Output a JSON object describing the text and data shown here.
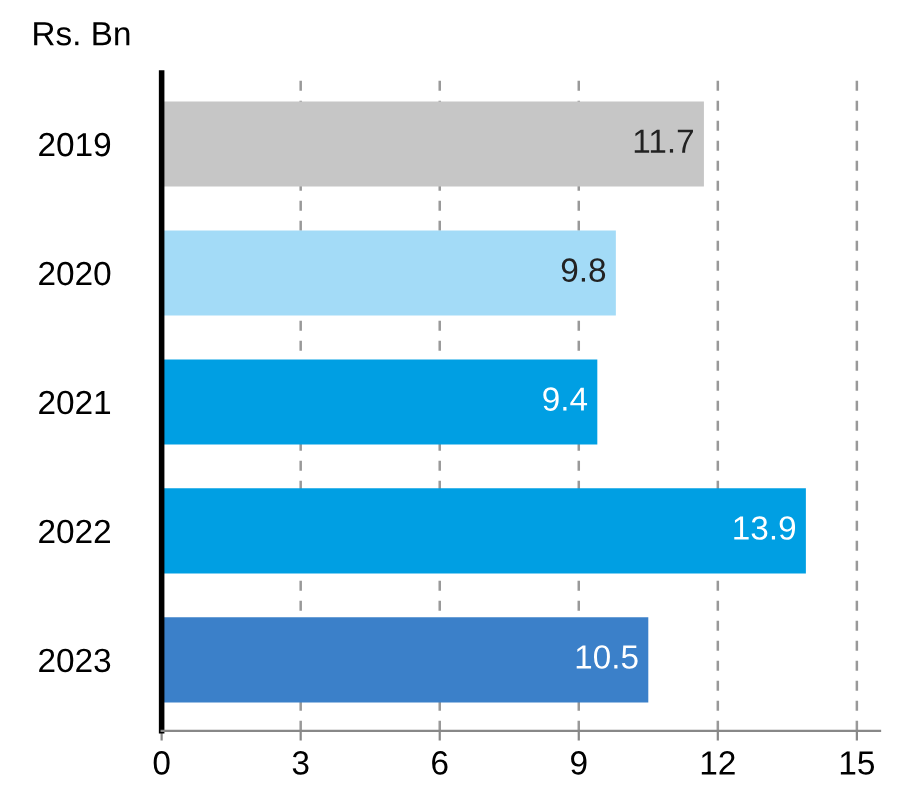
{
  "chart_data": {
    "type": "bar",
    "orientation": "horizontal",
    "title": "Rs. Bn",
    "categories": [
      "2019",
      "2020",
      "2021",
      "2022",
      "2023"
    ],
    "values": [
      11.7,
      9.8,
      9.4,
      13.9,
      10.5
    ],
    "colors": [
      "#c6c6c6",
      "#a3dbf7",
      "#009fe3",
      "#009fe3",
      "#3b80c9"
    ],
    "xlim": [
      0,
      15.5
    ],
    "xticks": [
      0,
      3,
      6,
      9,
      12,
      15
    ],
    "grid": "x",
    "data_labels": true
  }
}
